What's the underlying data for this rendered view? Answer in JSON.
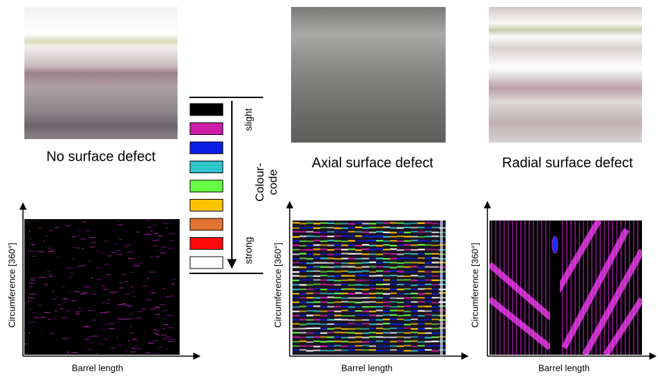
{
  "panels": [
    {
      "caption": "No surface defect",
      "y_axis_label": "Circumference [360°]",
      "x_axis_label": "Barrel length"
    },
    {
      "caption": "Axial surface defect",
      "y_axis_label": "Circumference [360°]",
      "x_axis_label": "Barrel length"
    },
    {
      "caption": "Radial surface defect",
      "y_axis_label": "Circumference [360°]",
      "x_axis_label": "Barrel length"
    }
  ],
  "colour_code": {
    "top_label": "slight",
    "title_lines": [
      "Colour-",
      "code"
    ],
    "bottom_label": "strong",
    "swatches": [
      "#000000",
      "#cc1ca8",
      "#0a1ee6",
      "#30c4cc",
      "#66ff44",
      "#ffc400",
      "#e07434",
      "#ff0a0a",
      "#ffffff"
    ]
  }
}
